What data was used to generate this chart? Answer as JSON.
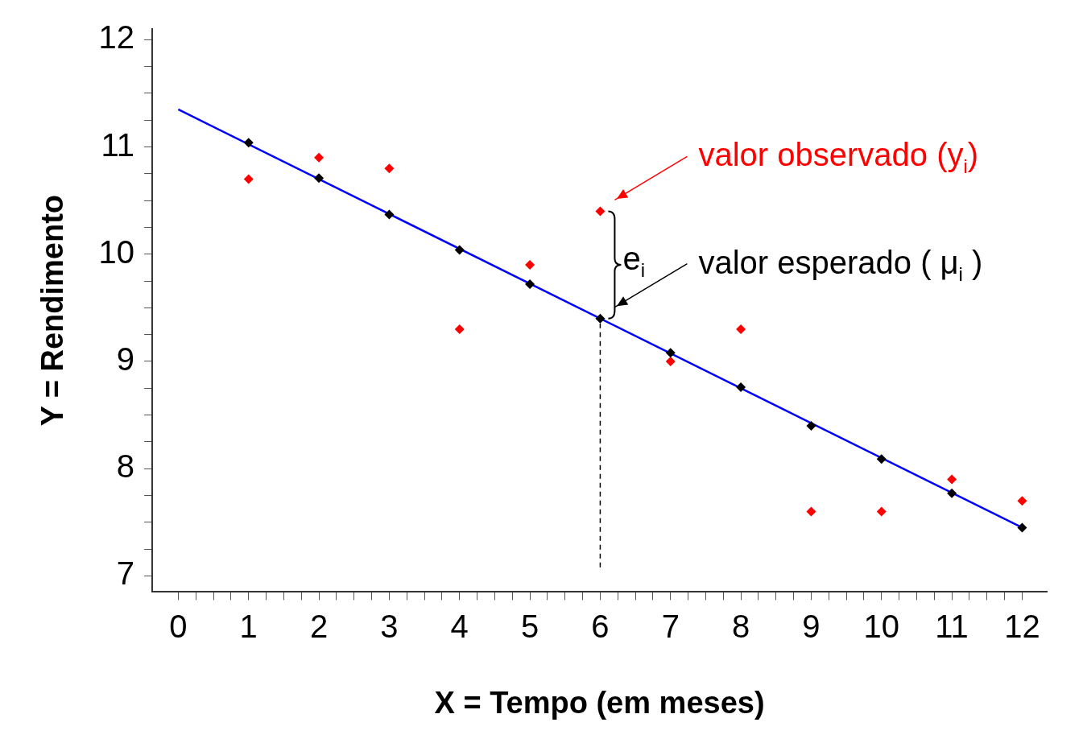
{
  "chart_data": {
    "type": "scatter",
    "xlabel": "X = Tempo (em meses)",
    "ylabel": "Y = Rendimento",
    "xlim": [
      -0.37,
      12.35
    ],
    "ylim": [
      6.85,
      12.1
    ],
    "xticks": [
      0,
      {
        "value": 0.25,
        "label": null
      },
      {
        "value": 0.5,
        "label": null
      },
      {
        "value": 0.75,
        "label": null
      },
      1,
      {
        "value": 1.25,
        "label": null
      },
      {
        "value": 1.5,
        "label": null
      },
      {
        "value": 1.75,
        "label": null
      },
      2,
      {
        "value": 2.25,
        "label": null
      },
      {
        "value": 2.5,
        "label": null
      },
      {
        "value": 2.75,
        "label": null
      },
      3,
      {
        "value": 3.25,
        "label": null
      },
      {
        "value": 3.5,
        "label": null
      },
      {
        "value": 3.75,
        "label": null
      },
      4,
      {
        "value": 4.25,
        "label": null
      },
      {
        "value": 4.5,
        "label": null
      },
      {
        "value": 4.75,
        "label": null
      },
      5,
      {
        "value": 5.25,
        "label": null
      },
      {
        "value": 5.5,
        "label": null
      },
      {
        "value": 5.75,
        "label": null
      },
      6,
      {
        "value": 6.25,
        "label": null
      },
      {
        "value": 6.5,
        "label": null
      },
      {
        "value": 6.75,
        "label": null
      },
      7,
      {
        "value": 7.25,
        "label": null
      },
      {
        "value": 7.5,
        "label": null
      },
      {
        "value": 7.75,
        "label": null
      },
      8,
      {
        "value": 8.25,
        "label": null
      },
      {
        "value": 8.5,
        "label": null
      },
      {
        "value": 8.75,
        "label": null
      },
      9,
      {
        "value": 9.25,
        "label": null
      },
      {
        "value": 9.5,
        "label": null
      },
      {
        "value": 9.75,
        "label": null
      },
      10,
      {
        "value": 10.25,
        "label": null
      },
      {
        "value": 10.5,
        "label": null
      },
      {
        "value": 10.75,
        "label": null
      },
      11,
      {
        "value": 11.25,
        "label": null
      },
      {
        "value": 11.5,
        "label": null
      },
      {
        "value": 11.75,
        "label": null
      },
      12
    ],
    "yticks": [
      7,
      {
        "value": 7.25,
        "label": null
      },
      {
        "value": 7.5,
        "label": null
      },
      {
        "value": 7.75,
        "label": null
      },
      8,
      {
        "value": 8.25,
        "label": null
      },
      {
        "value": 8.5,
        "label": null
      },
      {
        "value": 8.75,
        "label": null
      },
      9,
      {
        "value": 9.25,
        "label": null
      },
      {
        "value": 9.5,
        "label": null
      },
      {
        "value": 9.75,
        "label": null
      },
      10,
      {
        "value": 10.25,
        "label": null
      },
      {
        "value": 10.5,
        "label": null
      },
      {
        "value": 10.75,
        "label": null
      },
      11,
      {
        "value": 11.25,
        "label": null
      },
      {
        "value": 11.5,
        "label": null
      },
      {
        "value": 11.75,
        "label": null
      },
      12
    ],
    "grid": false,
    "legend": false,
    "series": [
      {
        "type": "line",
        "color": "#0000ff",
        "x": [
          0,
          12
        ],
        "values": [
          11.35,
          7.45
        ],
        "marker": "none",
        "line_style": "solid"
      },
      {
        "type": "scatter",
        "color": "#ff0000",
        "marker": "diamond",
        "x": [
          1,
          2,
          3,
          4,
          5,
          6,
          7,
          8,
          9,
          10,
          11,
          12
        ],
        "values": [
          10.7,
          10.9,
          10.8,
          9.3,
          9.9,
          10.4,
          9.0,
          9.3,
          7.6,
          7.6,
          7.9,
          7.7
        ]
      },
      {
        "type": "scatter",
        "color": "#000000",
        "marker": "diamond",
        "x": [
          1,
          2,
          3,
          4,
          5,
          6,
          7,
          8,
          9,
          10,
          11,
          12
        ],
        "values": [
          11.04,
          10.71,
          10.37,
          10.04,
          9.72,
          9.4,
          9.08,
          8.76,
          8.4,
          8.09,
          7.77,
          7.45
        ]
      }
    ],
    "annotations": [
      "valor observado (y$_{i}$)",
      "valor esperado ( μ$_{i}$ )",
      "e$_{i}$"
    ]
  }
}
